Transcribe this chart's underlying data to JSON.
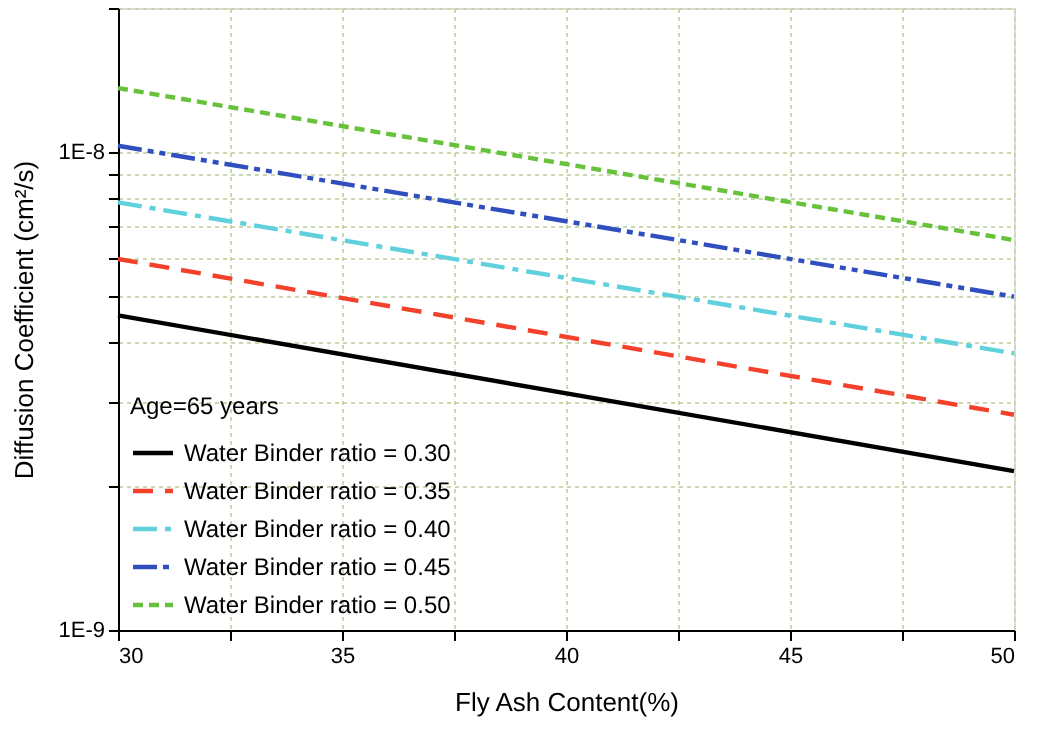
{
  "chart_data": {
    "type": "line",
    "xlabel": "Fly Ash Content(%)",
    "ylabel": "Diffusion Coefficient (cm²/s)",
    "legend_title": "Age=65 years",
    "legend": "bottom left",
    "grid": true,
    "log": "y",
    "x": [
      30,
      50
    ],
    "xlim": [
      30,
      50
    ],
    "xticks": [
      30,
      {
        "value": 32.5,
        "label": null
      },
      35,
      {
        "value": 37.5,
        "label": null
      },
      40,
      {
        "value": 42.5,
        "label": null
      },
      45,
      {
        "value": 47.5,
        "label": null
      },
      50
    ],
    "ylim": [
      1e-09,
      2e-08
    ],
    "yticks": [
      {
        "value": 1e-09,
        "label": "1E-9"
      },
      {
        "value": 2e-09,
        "label": null
      },
      {
        "value": 3e-09,
        "label": null
      },
      {
        "value": 4e-09,
        "label": null
      },
      {
        "value": 5e-09,
        "label": null
      },
      {
        "value": 6e-09,
        "label": null
      },
      {
        "value": 7e-09,
        "label": null
      },
      {
        "value": 8e-09,
        "label": null
      },
      {
        "value": 9e-09,
        "label": null
      },
      {
        "value": 1e-08,
        "label": "1E-8"
      },
      {
        "value": 2e-08,
        "label": null
      }
    ],
    "series": [
      {
        "name": "Water Binder ratio = 0.30",
        "color": "#000000",
        "line_style": "solid",
        "values": [
          4.55e-09,
          2.15e-09
        ]
      },
      {
        "name": "Water Binder ratio = 0.35",
        "color": "#f4412c",
        "line_style": "dashed",
        "values": [
          5.97e-09,
          2.82e-09
        ]
      },
      {
        "name": "Water Binder ratio = 0.40",
        "color": "#5fd0dc",
        "line_style": "dashdot",
        "values": [
          7.84e-09,
          3.79e-09
        ]
      },
      {
        "name": "Water Binder ratio = 0.45",
        "color": "#2f4fbf",
        "line_style": "dashdotdot",
        "values": [
          1.03e-08,
          4.98e-09
        ]
      },
      {
        "name": "Water Binder ratio = 0.50",
        "color": "#66c23a",
        "line_style": "dotted",
        "values": [
          1.36e-08,
          6.54e-09
        ]
      }
    ]
  }
}
